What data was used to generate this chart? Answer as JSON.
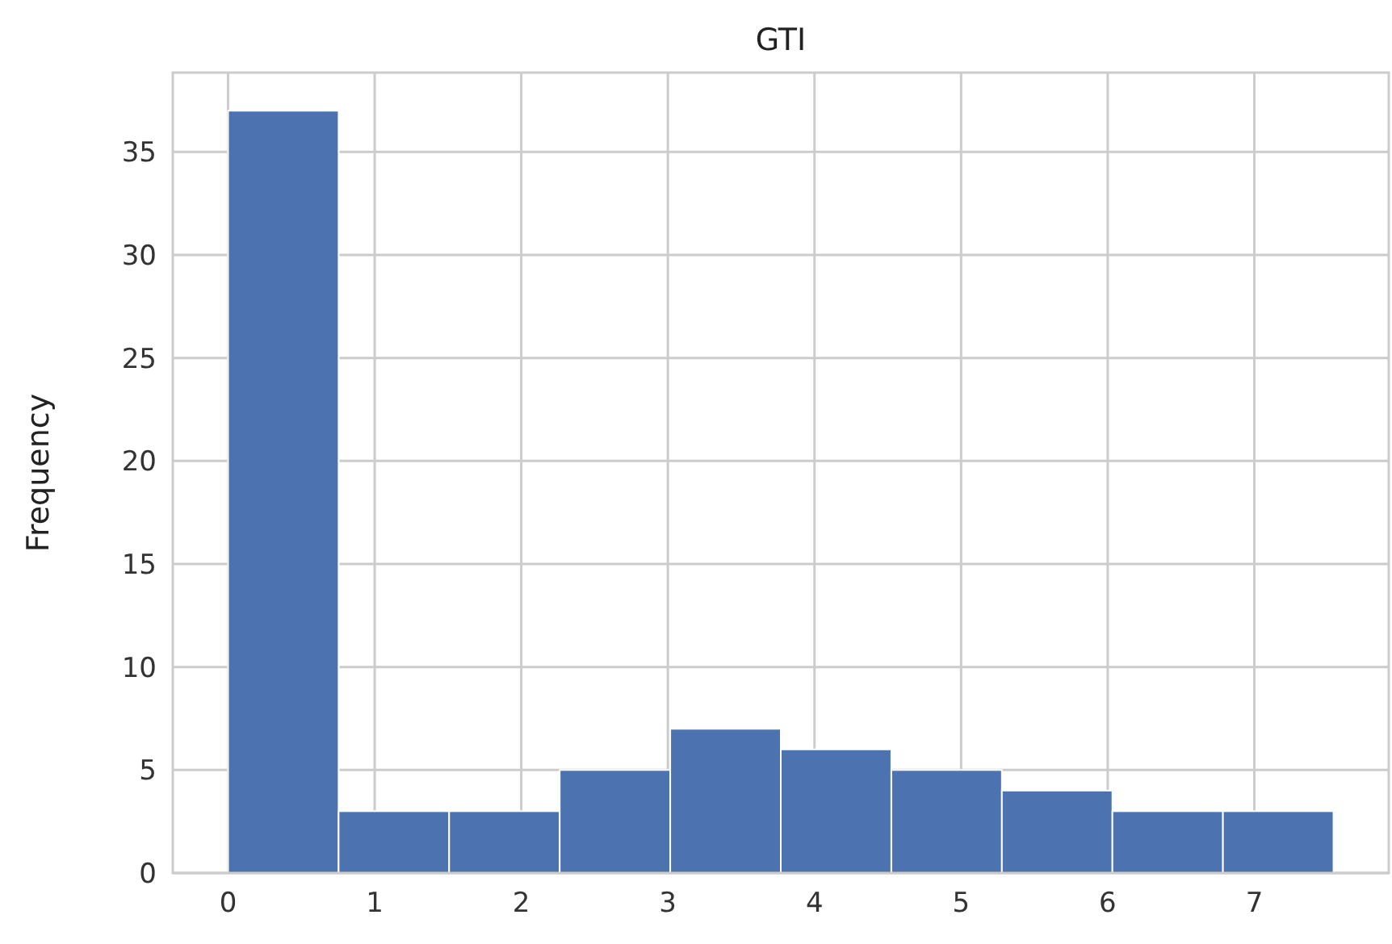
{
  "chart_data": {
    "type": "histogram",
    "title": "GTI",
    "ylabel": "Frequency",
    "bins": [
      0,
      0.754,
      1.508,
      2.262,
      3.016,
      3.77,
      4.524,
      5.278,
      6.032,
      6.786,
      7.54
    ],
    "values": [
      37,
      3,
      3,
      5,
      7,
      6,
      5,
      4,
      3,
      3
    ],
    "color": "#4c72b0",
    "xlim": [
      -0.377,
      7.917
    ],
    "xticks": [
      0,
      1,
      2,
      3,
      4,
      5,
      6,
      7
    ],
    "ylim": [
      0,
      38.85
    ],
    "yticks": [
      0,
      5,
      10,
      15,
      20,
      25,
      30,
      35
    ],
    "grid": true
  }
}
